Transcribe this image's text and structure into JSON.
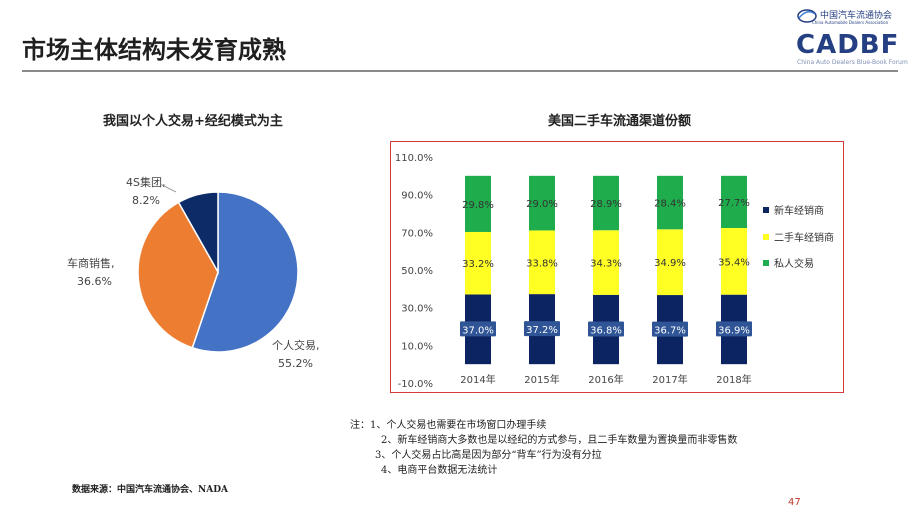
{
  "slide": {
    "title": "市场主体结构未发育成熟",
    "page_number": "47",
    "source": "数据来源：中国汽车流通协会、NADA"
  },
  "logo": {
    "cn": "中国汽车流通协会",
    "en": "China Automobile Dealers Association",
    "main": "CADBF",
    "sub": "China Auto Dealers Blue-Book Forum"
  },
  "notes": [
    "注：1、个人交易也需要在市场窗口办理手续",
    "2、新车经销商大多数也是以经纪的方式参与，且二手车数量为置换量而非零售数",
    "3、个人交易占比高是因为部分“背车”行为没有分拉",
    "4、电商平台数据无法统计"
  ],
  "colors": {
    "pie_individual": "#4472c4",
    "pie_dealer": "#ed7d31",
    "pie_4s": "#0c2b67",
    "bar_new": "#0c2461",
    "bar_used": "#ffff24",
    "bar_private": "#1fac4d",
    "frame": "#d43a3a"
  },
  "chart_data": [
    {
      "type": "pie",
      "title": "我国以个人交易+经纪模式为主",
      "slices": [
        {
          "name": "个人交易",
          "value": 55.2,
          "label": "个人交易,",
          "value_label": "55.2%"
        },
        {
          "name": "车商销售",
          "value": 36.6,
          "label": "车商销售,",
          "value_label": "36.6%"
        },
        {
          "name": "4S集团",
          "value": 8.2,
          "label": "4S集团,",
          "value_label": "8.2%"
        }
      ]
    },
    {
      "type": "bar",
      "stacked": true,
      "title": "美国二手车流通渠道份额",
      "categories": [
        "2014年",
        "2015年",
        "2016年",
        "2017年",
        "2018年"
      ],
      "series": [
        {
          "name": "新车经销商",
          "values": [
            37.0,
            37.2,
            36.8,
            36.7,
            36.9
          ],
          "labels": [
            "37.0%",
            "37.2%",
            "36.8%",
            "36.7%",
            "36.9%"
          ]
        },
        {
          "name": "二手车经销商",
          "values": [
            33.2,
            33.8,
            34.3,
            34.9,
            35.4
          ],
          "labels": [
            "33.2%",
            "33.8%",
            "34.3%",
            "34.9%",
            "35.4%"
          ]
        },
        {
          "name": "私人交易",
          "values": [
            29.8,
            29.0,
            28.9,
            28.4,
            27.7
          ],
          "labels": [
            "29.8%",
            "29.0%",
            "28.9%",
            "28.4%",
            "27.7%"
          ]
        }
      ],
      "ylim": [
        -10,
        110
      ],
      "yticks": [
        "110.0%",
        "90.0%",
        "70.0%",
        "50.0%",
        "30.0%",
        "10.0%",
        "-10.0%"
      ],
      "ytick_values": [
        110,
        90,
        70,
        50,
        30,
        10,
        -10
      ],
      "legend": "right",
      "grid": false
    }
  ]
}
